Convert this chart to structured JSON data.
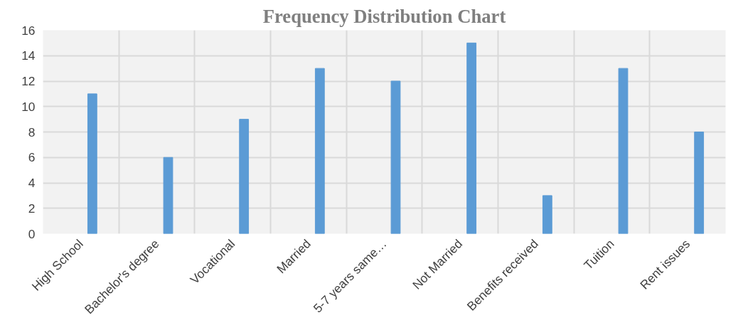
{
  "chart_data": {
    "type": "bar",
    "title": "Frequency Distribution Chart",
    "categories": [
      "High School",
      "Bachelor's degree",
      "Vocational",
      "Married",
      "5-7 years same…",
      "Not Married",
      "Benefits received",
      "Tuition",
      "Rent issues"
    ],
    "values": [
      11,
      6,
      9,
      13,
      12,
      15,
      3,
      13,
      8
    ],
    "color": "#5b9bd5",
    "ylim": [
      0,
      16
    ],
    "yticks": [
      0,
      2,
      4,
      6,
      8,
      10,
      12,
      14,
      16
    ],
    "grid": true
  }
}
